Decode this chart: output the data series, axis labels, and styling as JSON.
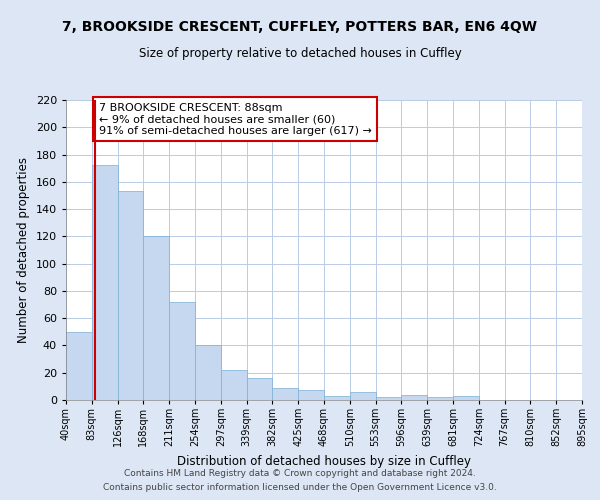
{
  "title": "7, BROOKSIDE CRESCENT, CUFFLEY, POTTERS BAR, EN6 4QW",
  "subtitle": "Size of property relative to detached houses in Cuffley",
  "xlabel": "Distribution of detached houses by size in Cuffley",
  "ylabel": "Number of detached properties",
  "bar_values": [
    50,
    172,
    153,
    120,
    72,
    40,
    22,
    16,
    9,
    7,
    3,
    6,
    2,
    4,
    2,
    3
  ],
  "x_tick_labels": [
    "40sqm",
    "83sqm",
    "126sqm",
    "168sqm",
    "211sqm",
    "254sqm",
    "297sqm",
    "339sqm",
    "382sqm",
    "425sqm",
    "468sqm",
    "510sqm",
    "553sqm",
    "596sqm",
    "639sqm",
    "681sqm",
    "724sqm",
    "767sqm",
    "810sqm",
    "852sqm",
    "895sqm"
  ],
  "ylim": [
    0,
    220
  ],
  "yticks": [
    0,
    20,
    40,
    60,
    80,
    100,
    120,
    140,
    160,
    180,
    200,
    220
  ],
  "bar_color": "#c5d8f0",
  "bar_edge_color": "#7bafd4",
  "vline_color": "#cc0000",
  "annotation_text": "7 BROOKSIDE CRESCENT: 88sqm\n← 9% of detached houses are smaller (60)\n91% of semi-detached houses are larger (617) →",
  "annotation_box_color": "#ffffff",
  "annotation_box_edge": "#cc0000",
  "fig_bg_color": "#dce6f5",
  "plot_bg_color": "#ffffff",
  "grid_color": "#b8cce4",
  "footer_line1": "Contains HM Land Registry data © Crown copyright and database right 2024.",
  "footer_line2": "Contains public sector information licensed under the Open Government Licence v3.0."
}
